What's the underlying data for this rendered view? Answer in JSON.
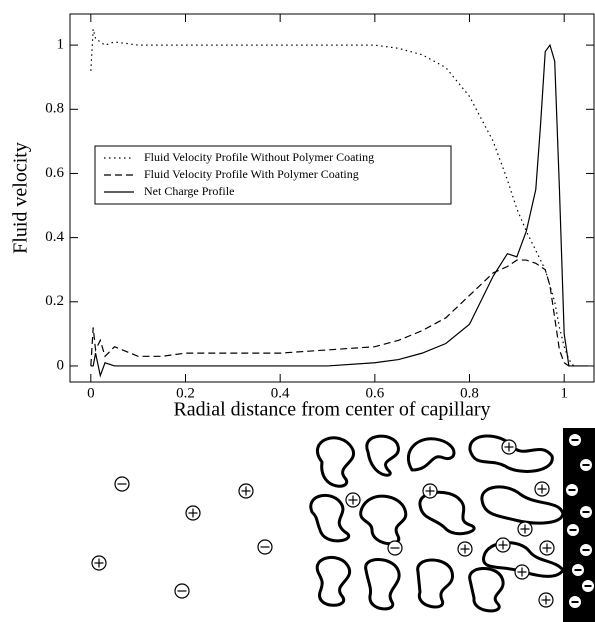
{
  "chart_data": {
    "type": "line",
    "xlabel": "Radial distance from center of capillary",
    "ylabel": "Fluid velocity",
    "x": [
      0,
      0.005,
      0.01,
      0.02,
      0.03,
      0.05,
      0.1,
      0.15,
      0.2,
      0.3,
      0.4,
      0.5,
      0.6,
      0.65,
      0.7,
      0.75,
      0.8,
      0.85,
      0.88,
      0.9,
      0.92,
      0.94,
      0.95,
      0.96,
      0.97,
      0.98,
      0.99,
      1.0,
      1.01,
      1.02,
      1.05
    ],
    "series": [
      {
        "name": "Fluid Velocity Profile Without Polymer Coating",
        "color": "#000000",
        "style": "dotted",
        "values": [
          0.92,
          1.05,
          1.02,
          1.01,
          1.0,
          1.01,
          1.0,
          1.0,
          1.0,
          1.0,
          1.0,
          1.0,
          1.0,
          0.99,
          0.97,
          0.93,
          0.84,
          0.7,
          0.58,
          0.49,
          0.42,
          0.36,
          0.33,
          0.3,
          0.25,
          0.2,
          0.12,
          0.06,
          0.02,
          0.0,
          null
        ]
      },
      {
        "name": "Fluid Velocity Profile With Polymer Coating",
        "color": "#000000",
        "style": "dashed",
        "values": [
          0.0,
          0.12,
          0.05,
          0.08,
          0.03,
          0.06,
          0.03,
          0.03,
          0.04,
          0.04,
          0.04,
          0.05,
          0.06,
          0.08,
          0.11,
          0.15,
          0.22,
          0.29,
          0.31,
          0.33,
          0.33,
          0.32,
          0.31,
          0.3,
          0.25,
          0.15,
          0.05,
          0.01,
          0.0,
          null,
          null
        ]
      },
      {
        "name": "Net Charge Profile",
        "color": "#000000",
        "style": "solid",
        "values": [
          0.0,
          0.0,
          0.04,
          -0.03,
          0.01,
          0.0,
          0.0,
          0.0,
          0.0,
          0.0,
          0.0,
          0.0,
          0.01,
          0.02,
          0.04,
          0.07,
          0.13,
          0.28,
          0.35,
          0.34,
          0.42,
          0.55,
          0.75,
          0.98,
          1.0,
          0.95,
          0.55,
          0.1,
          0.0,
          0.0,
          0.0
        ]
      }
    ],
    "xlim": [
      -0.044,
      1.063
    ],
    "ylim": [
      -0.05,
      1.097
    ],
    "xticks": [
      0,
      0.2,
      0.4,
      0.6,
      0.8,
      1
    ],
    "yticks": [
      0,
      0.2,
      0.4,
      0.6,
      0.8,
      1
    ],
    "grid": false,
    "legend": "center-left"
  }
}
